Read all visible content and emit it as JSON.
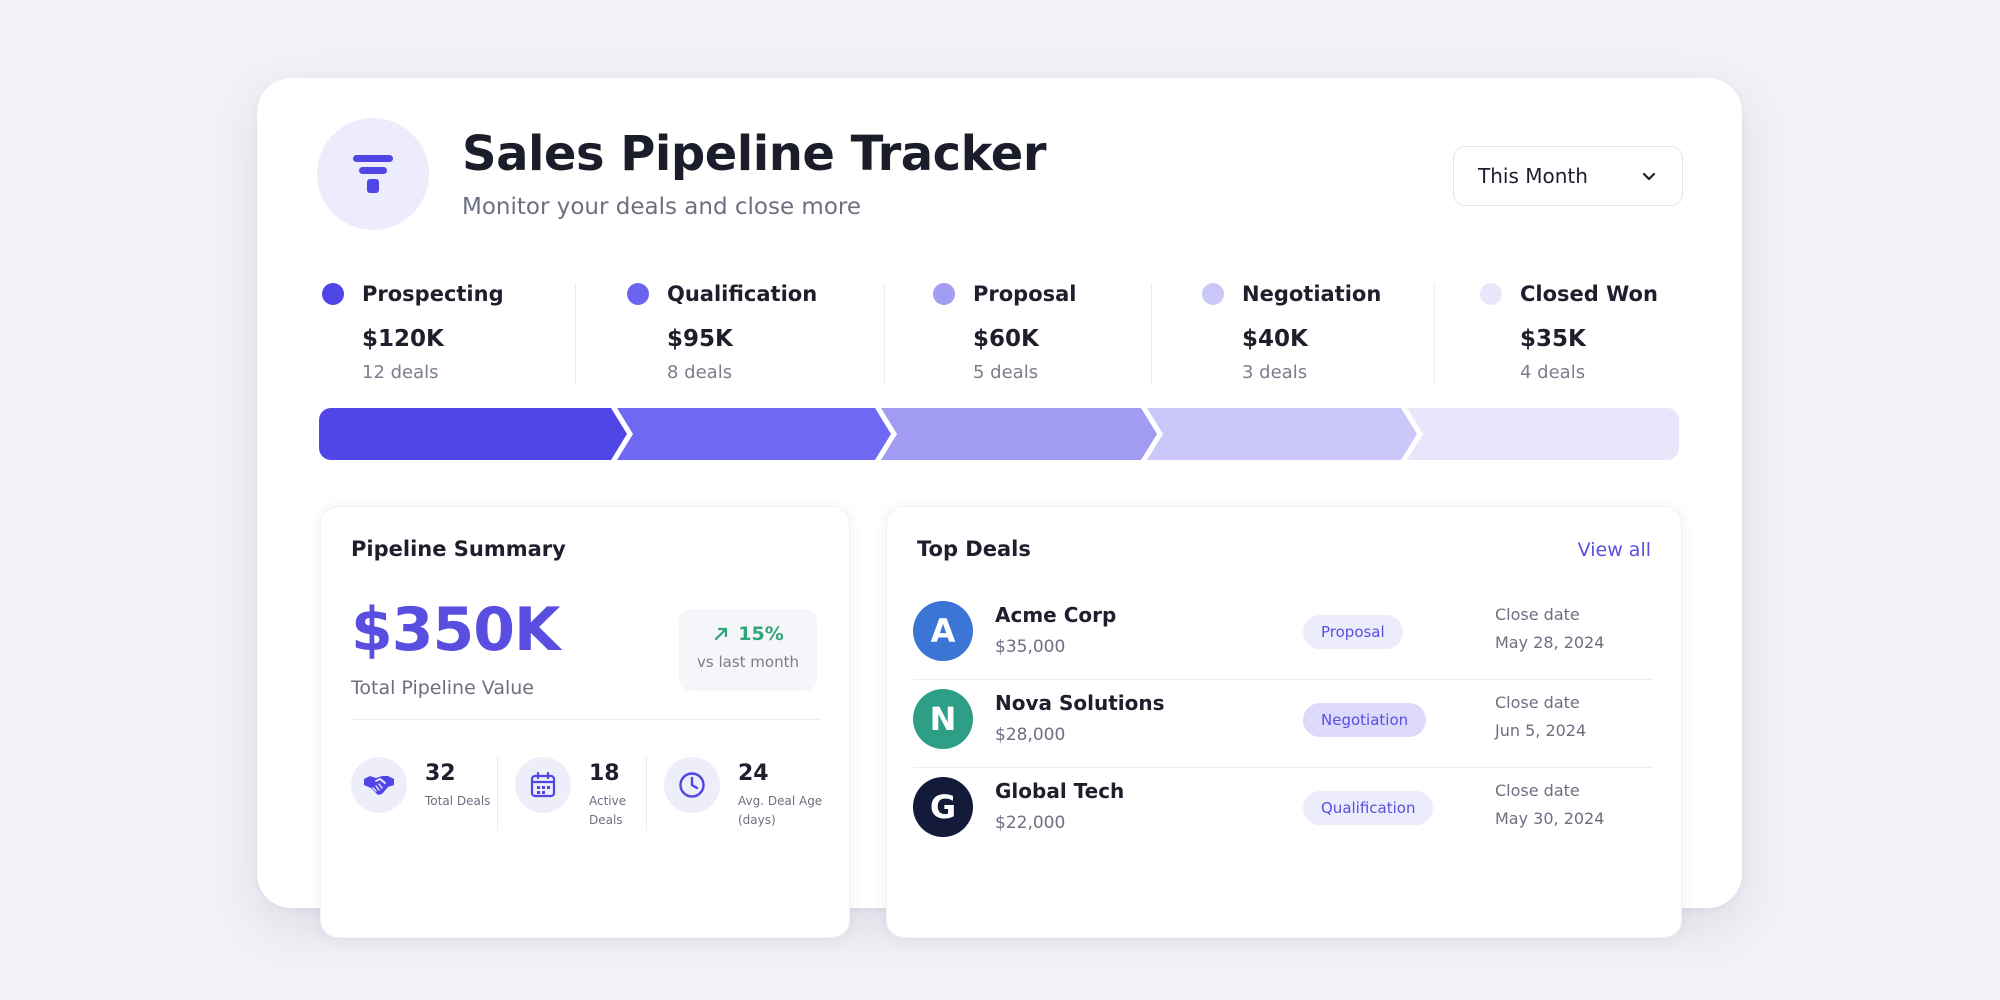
{
  "header": {
    "title": "Sales Pipeline Tracker",
    "subtitle": "Monitor your deals and close more",
    "logo_icon": "funnel-icon",
    "period_select": {
      "value": "This Month",
      "icon": "chevron-down-icon"
    }
  },
  "stages": [
    {
      "name": "Prospecting",
      "value": "$120K",
      "deals": "12 deals",
      "color": "#4f46e5"
    },
    {
      "name": "Qualification",
      "value": "$95K",
      "deals": "8 deals",
      "color": "#6c63f0"
    },
    {
      "name": "Proposal",
      "value": "$60K",
      "deals": "5 deals",
      "color": "#a29cf5"
    },
    {
      "name": "Negotiation",
      "value": "$40K",
      "deals": "3 deals",
      "color": "#cbc7f8"
    },
    {
      "name": "Closed Won",
      "value": "$35K",
      "deals": "4 deals",
      "color": "#e8e6fb"
    }
  ],
  "summary": {
    "title": "Pipeline Summary",
    "total_value": "$350K",
    "total_label": "Total Pipeline Value",
    "growth": {
      "value": "15%",
      "label": "vs last month",
      "icon": "arrow-up-right-icon",
      "color": "#2fa57a"
    },
    "stats": [
      {
        "icon": "handshake-icon",
        "value": "32",
        "label_lines": [
          "Total Deals"
        ]
      },
      {
        "icon": "calendar-icon",
        "value": "18",
        "label_lines": [
          "Active",
          "Deals"
        ]
      },
      {
        "icon": "clock-icon",
        "value": "24",
        "label_lines": [
          "Avg. Deal Age",
          "(days)"
        ]
      }
    ]
  },
  "top_deals": {
    "title": "Top Deals",
    "view_all": "View all",
    "close_date_label": "Close date",
    "deals": [
      {
        "initial": "A",
        "company": "Acme Corp",
        "amount": "$35,000",
        "stage": "Proposal",
        "close_date": "May 28, 2024",
        "avatar_color": "#3b76d6",
        "badge_bg": "#ececfc"
      },
      {
        "initial": "N",
        "company": "Nova Solutions",
        "amount": "$28,000",
        "stage": "Negotiation",
        "close_date": "Jun 5, 2024",
        "avatar_color": "#2f9e86",
        "badge_bg": "#dcd9fa"
      },
      {
        "initial": "G",
        "company": "Global Tech",
        "amount": "$22,000",
        "stage": "Qualification",
        "close_date": "May 30, 2024",
        "avatar_color": "#141a3a",
        "badge_bg": "#ececfc"
      }
    ]
  }
}
